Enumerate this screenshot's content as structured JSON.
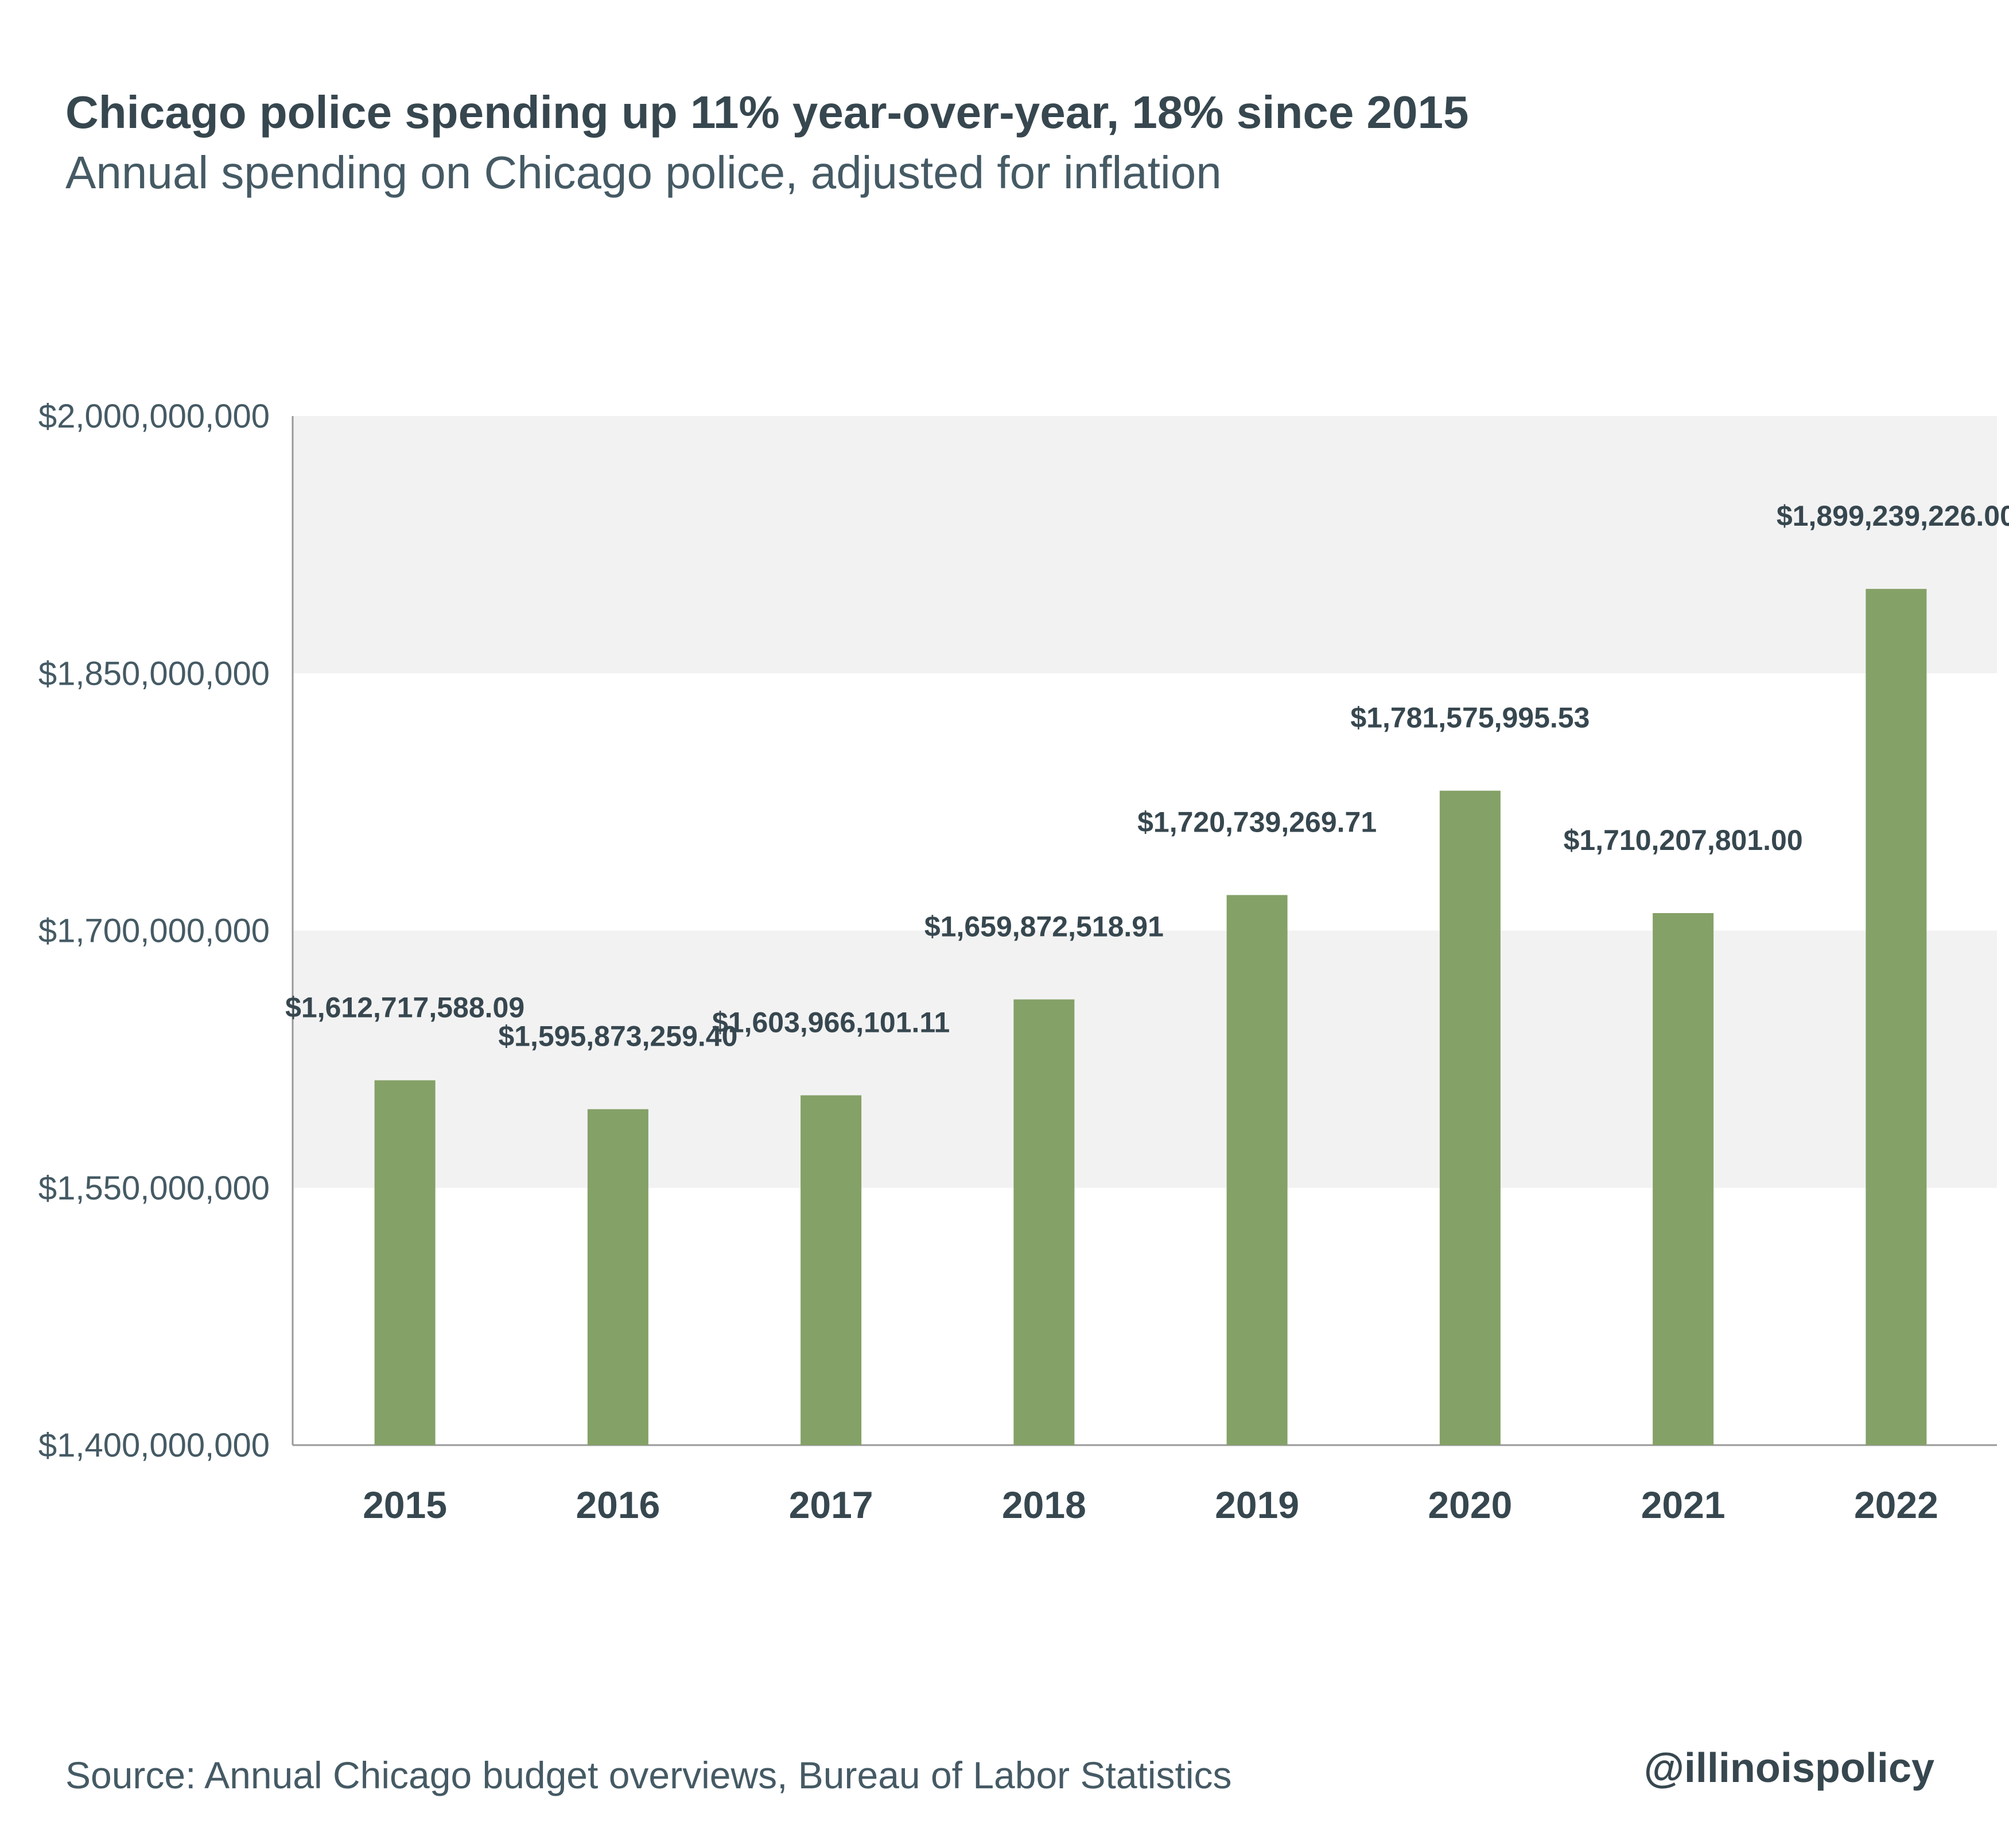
{
  "header": {
    "title": "Chicago police spending up 11% year-over-year, 18% since 2015",
    "subtitle": "Annual spending on Chicago police, adjusted for inflation"
  },
  "footer": {
    "source": "Source:  Annual Chicago budget overviews, Bureau of Labor Statistics",
    "handle": "@illinoispolicy"
  },
  "chart_data": {
    "type": "bar",
    "categories": [
      "2015",
      "2016",
      "2017",
      "2018",
      "2019",
      "2020",
      "2021",
      "2022"
    ],
    "values": [
      1612717588.09,
      1595873259.4,
      1603966101.11,
      1659872518.91,
      1720739269.71,
      1781575995.53,
      1710207801.0,
      1899239226.0
    ],
    "data_labels": [
      "$1,612,717,588.09",
      "$1,595,873,259.40",
      "$1,603,966,101.11",
      "$1,659,872,518.91",
      "$1,720,739,269.71",
      "$1,781,575,995.53",
      "$1,710,207,801.00",
      "$1,899,239,226.00"
    ],
    "ylim": [
      1400000000,
      2000000000
    ],
    "yticks": [
      1400000000,
      1550000000,
      1700000000,
      1850000000,
      2000000000
    ],
    "ytick_labels": [
      "$1,400,000,000",
      "$1,550,000,000",
      "$1,700,000,000",
      "$1,850,000,000",
      "$2,000,000,000"
    ],
    "grid": "alternating horizontal bands",
    "legend": "none",
    "colors": {
      "bar": "#84a167",
      "band": "#f2f2f2",
      "axis": "#999999",
      "text": "#37474f"
    }
  }
}
